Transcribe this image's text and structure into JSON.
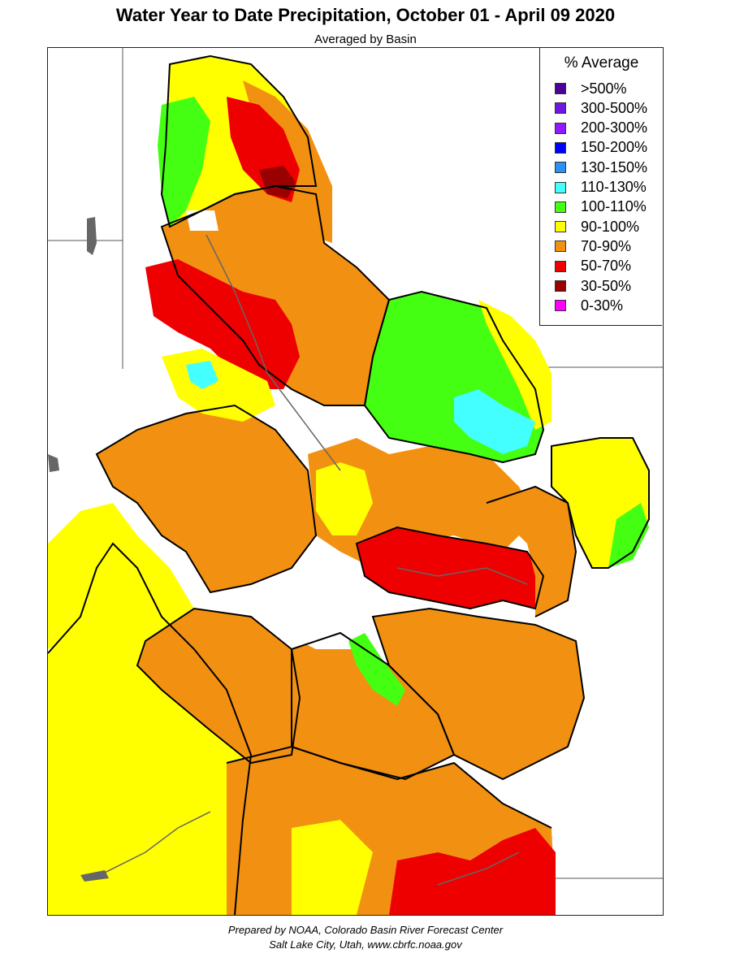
{
  "title": "Water Year to Date Precipitation, October 01  - April 09 2020",
  "subtitle": "Averaged by Basin",
  "legend": {
    "title": "% Average",
    "items": [
      {
        "label": ">500%",
        "color": "#4b0099"
      },
      {
        "label": "300-500%",
        "color": "#6f16e0"
      },
      {
        "label": "200-300%",
        "color": "#8f19ff"
      },
      {
        "label": "150-200%",
        "color": "#0000ff"
      },
      {
        "label": "130-150%",
        "color": "#2e8ff5"
      },
      {
        "label": "110-130%",
        "color": "#44ffff"
      },
      {
        "label": "100-110%",
        "color": "#44ff11"
      },
      {
        "label": "90-100%",
        "color": "#ffff00"
      },
      {
        "label": "70-90%",
        "color": "#f29111"
      },
      {
        "label": "50-70%",
        "color": "#ee0000"
      },
      {
        "label": "30-50%",
        "color": "#990000"
      },
      {
        "label": "0-30%",
        "color": "#ff00ff"
      }
    ]
  },
  "footer": {
    "line1": "Prepared by NOAA, Colorado Basin River Forecast Center",
    "line2": "Salt Lake City, Utah, www.cbrfc.noaa.gov"
  }
}
